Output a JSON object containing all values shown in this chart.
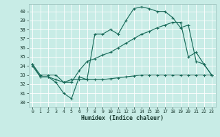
{
  "xlabel": "Humidex (Indice chaleur)",
  "xlim": [
    -0.5,
    23.5
  ],
  "ylim": [
    29.5,
    40.8
  ],
  "xticks": [
    0,
    1,
    2,
    3,
    4,
    5,
    6,
    7,
    8,
    9,
    10,
    11,
    12,
    13,
    14,
    15,
    16,
    17,
    18,
    19,
    20,
    21,
    22,
    23
  ],
  "yticks": [
    30,
    31,
    32,
    33,
    34,
    35,
    36,
    37,
    38,
    39,
    40
  ],
  "bg_color": "#c8ece6",
  "line_color": "#1a6b5a",
  "grid_color": "#b0ddd6",
  "line1": [
    34.2,
    32.8,
    32.8,
    32.2,
    31.0,
    30.4,
    32.8,
    32.5,
    37.5,
    37.5,
    38.0,
    37.5,
    39.0,
    40.3,
    40.5,
    40.3,
    40.0,
    40.0,
    39.3,
    38.2,
    38.5,
    34.5,
    34.2,
    33.0
  ],
  "line2": [
    34.2,
    33.0,
    33.0,
    33.0,
    32.2,
    32.2,
    33.5,
    34.5,
    34.8,
    35.2,
    35.5,
    36.0,
    36.5,
    37.0,
    37.5,
    37.8,
    38.2,
    38.5,
    38.8,
    38.8,
    35.0,
    35.5,
    34.2,
    33.0
  ],
  "line3": [
    34.0,
    32.8,
    32.8,
    32.5,
    32.2,
    32.5,
    32.5,
    32.5,
    32.5,
    32.5,
    32.6,
    32.7,
    32.8,
    32.9,
    33.0,
    33.0,
    33.0,
    33.0,
    33.0,
    33.0,
    33.0,
    33.0,
    33.0,
    33.0
  ]
}
